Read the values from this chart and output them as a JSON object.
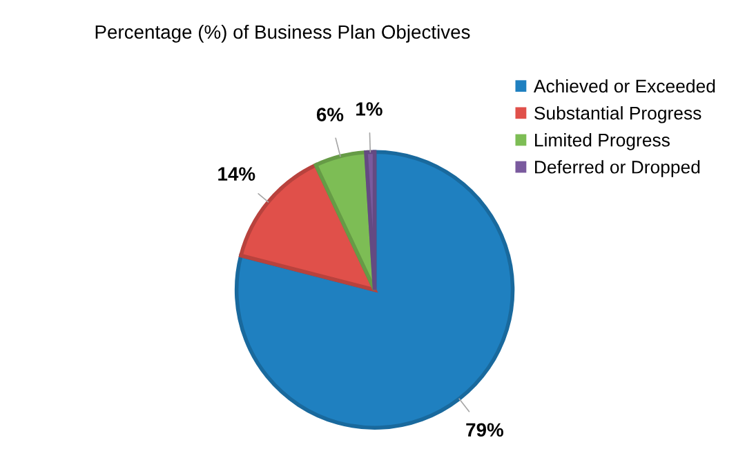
{
  "chart_data": {
    "type": "pie",
    "title": "Percentage (%) of Business Plan Objectives",
    "categories": [
      "Achieved or Exceeded",
      "Substantial Progress",
      "Limited Progress",
      "Deferred or Dropped"
    ],
    "values": [
      79,
      14,
      6,
      1
    ],
    "colors": [
      "#1f80c0",
      "#e0504a",
      "#7dbd55",
      "#7a5a9e"
    ],
    "value_labels": [
      "79%",
      "14%",
      "6%",
      "1%"
    ],
    "legend": "top right"
  }
}
